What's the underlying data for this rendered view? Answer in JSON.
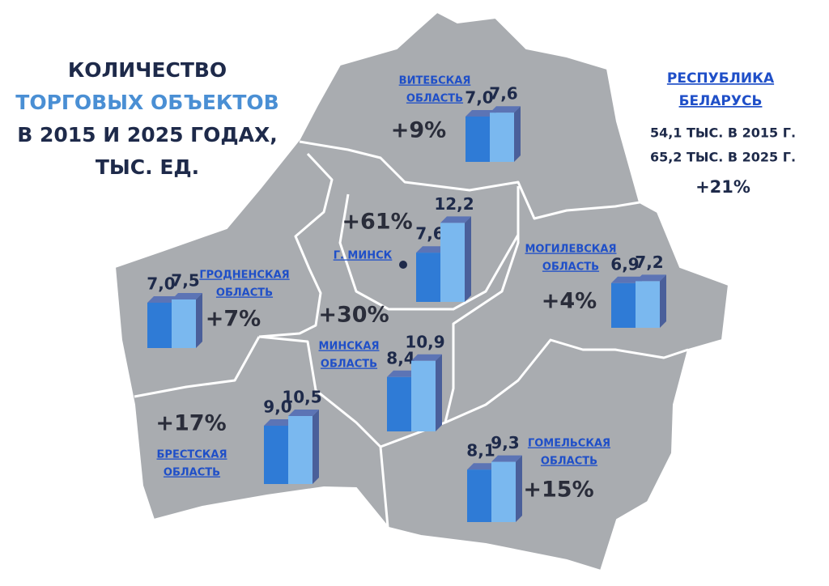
{
  "title": {
    "lines": [
      "КОЛИЧЕСТВО",
      "ТОРГОВЫХ ОБЪЕКТОВ",
      "В 2015 И 2025 ГОДАХ,",
      "ТЫС. ЕД."
    ]
  },
  "republic": {
    "name_lines": [
      "РЕСПУБЛИКА",
      "БЕЛАРУСЬ"
    ],
    "lines": [
      "54,1 ТЫС. В 2015 Г.",
      "65,2 ТЫС. В 2025 Г."
    ],
    "change": "+21%"
  },
  "regions": [
    {
      "name_lines": [
        "ВИТЕБСКАЯ",
        "ОБЛАСТЬ"
      ],
      "values": [
        7.0,
        7.6
      ],
      "value_labels": [
        "7,0",
        "7,6"
      ],
      "change": "+9%"
    },
    {
      "name_lines": [
        "Г. МИНСК"
      ],
      "values": [
        7.6,
        12.2
      ],
      "value_labels": [
        "7,6",
        "12,2"
      ],
      "change": "+61%"
    },
    {
      "name_lines": [
        "ГРОДНЕНСКАЯ",
        "ОБЛАСТЬ"
      ],
      "values": [
        7.0,
        7.5
      ],
      "value_labels": [
        "7,0",
        "7,5"
      ],
      "change": "+7%"
    },
    {
      "name_lines": [
        "МОГИЛЕВСКАЯ",
        "ОБЛАСТЬ"
      ],
      "values": [
        6.9,
        7.2
      ],
      "value_labels": [
        "6,9",
        "7,2"
      ],
      "change": "+4%"
    },
    {
      "name_lines": [
        "МИНСКАЯ",
        "ОБЛАСТЬ"
      ],
      "values": [
        8.4,
        10.9
      ],
      "value_labels": [
        "8,4",
        "10,9"
      ],
      "change": "+30%"
    },
    {
      "name_lines": [
        "БРЕСТСКАЯ",
        "ОБЛАСТЬ"
      ],
      "values": [
        9.0,
        10.5
      ],
      "value_labels": [
        "9,0",
        "10,5"
      ],
      "change": "+17%"
    },
    {
      "name_lines": [
        "ГОМЕЛЬСКАЯ",
        "ОБЛАСТЬ"
      ],
      "values": [
        8.1,
        9.3
      ],
      "value_labels": [
        "8,1",
        "9,3"
      ],
      "change": "+15%"
    }
  ]
}
